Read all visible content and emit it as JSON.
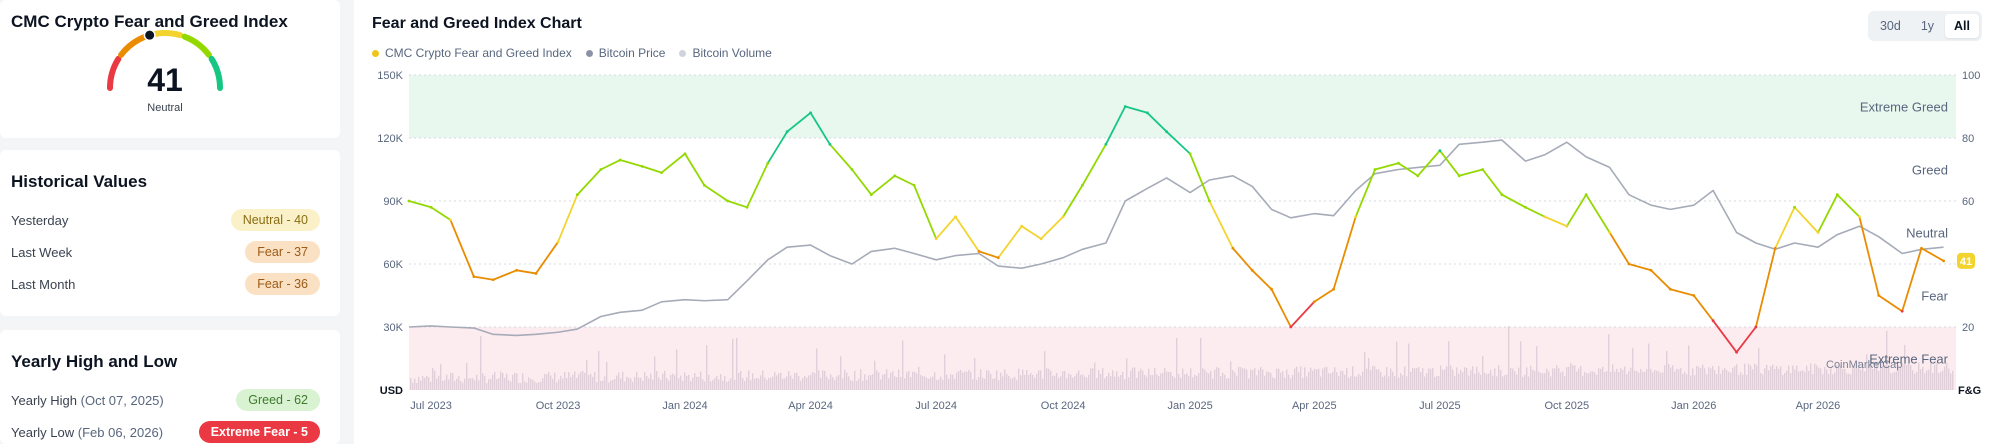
{
  "gauge": {
    "title": "CMC Crypto Fear and Greed Index",
    "value": "41",
    "classification": "Neutral"
  },
  "historical": {
    "title": "Historical Values",
    "rows": [
      {
        "label": "Yesterday",
        "value": "Neutral - 40",
        "level": "neutral"
      },
      {
        "label": "Last Week",
        "value": "Fear - 37",
        "level": "fear"
      },
      {
        "label": "Last Month",
        "value": "Fear - 36",
        "level": "fear"
      }
    ]
  },
  "yearly": {
    "title": "Yearly High and Low",
    "high_label": "Yearly High",
    "high_date": "(Oct 07, 2025)",
    "high_value": "Greed - 62",
    "low_label": "Yearly Low",
    "low_date": "(Feb 06, 2026)",
    "low_value": "Extreme Fear - 5"
  },
  "chart_header": {
    "title": "Fear and Greed Index Chart",
    "legend": [
      {
        "label": "CMC Crypto Fear and Greed Index",
        "color": "#f0c419"
      },
      {
        "label": "Bitcoin Price",
        "color": "#8d93a6"
      },
      {
        "label": "Bitcoin Volume",
        "color": "#cfd3dc"
      }
    ],
    "ranges": [
      "30d",
      "1y",
      "All"
    ],
    "active_range": "All"
  },
  "colors": {
    "extreme_fear": "#ea3943",
    "fear": "#ea8c00",
    "neutral": "#f3d42f",
    "greed": "#93d900",
    "extreme_greed": "#16c784",
    "btc": "#a6abb8",
    "volume": "#d6c6d0"
  },
  "chart_data": {
    "type": "line",
    "x_tick_labels": [
      "Jul 2023",
      "Oct 2023",
      "Jan 2024",
      "Apr 2024",
      "Jul 2024",
      "Oct 2024",
      "Jan 2025",
      "Apr 2025",
      "Jul 2025",
      "Oct 2025",
      "Jan 2026",
      "Apr 2026"
    ],
    "left_axis": {
      "label": "USD",
      "ticks": [
        "30K",
        "60K",
        "90K",
        "120K",
        "150K"
      ],
      "range": [
        0,
        150000
      ]
    },
    "right_axis": {
      "label": "F&G",
      "ticks": [
        "20",
        "40",
        "60",
        "80",
        "100"
      ],
      "range": [
        0,
        100
      ]
    },
    "zones": [
      "Extreme Greed",
      "Greed",
      "Neutral",
      "Fear",
      "Extreme Fear"
    ],
    "current_value": "41",
    "watermark": "CoinMarketCap",
    "series": [
      {
        "name": "CMC Crypto Fear and Greed Index",
        "x": [
          "2023-06-15",
          "2023-07-01",
          "2023-07-15",
          "2023-08-01",
          "2023-08-15",
          "2023-09-01",
          "2023-09-15",
          "2023-10-01",
          "2023-10-15",
          "2023-11-01",
          "2023-11-15",
          "2023-12-01",
          "2023-12-15",
          "2024-01-01",
          "2024-01-15",
          "2024-02-01",
          "2024-02-15",
          "2024-03-01",
          "2024-03-15",
          "2024-04-01",
          "2024-04-15",
          "2024-05-01",
          "2024-05-15",
          "2024-06-01",
          "2024-06-15",
          "2024-07-01",
          "2024-07-15",
          "2024-08-01",
          "2024-08-15",
          "2024-09-01",
          "2024-09-15",
          "2024-10-01",
          "2024-10-15",
          "2024-11-01",
          "2024-11-15",
          "2024-12-01",
          "2024-12-15",
          "2025-01-01",
          "2025-01-15",
          "2025-02-01",
          "2025-02-15",
          "2025-03-01",
          "2025-03-15",
          "2025-04-01",
          "2025-04-15",
          "2025-05-01",
          "2025-05-15",
          "2025-06-01",
          "2025-06-15",
          "2025-07-01",
          "2025-07-15",
          "2025-08-01",
          "2025-08-15",
          "2025-09-01",
          "2025-09-15",
          "2025-10-01",
          "2025-10-15",
          "2025-11-01",
          "2025-11-15",
          "2025-12-01",
          "2025-12-15",
          "2026-01-01",
          "2026-01-15",
          "2026-02-01",
          "2026-02-15",
          "2026-03-01",
          "2026-03-15",
          "2026-04-01",
          "2026-04-15",
          "2026-05-01",
          "2026-05-15",
          "2026-06-01",
          "2026-06-15",
          "2026-07-01"
        ],
        "values": [
          60,
          58,
          54,
          36,
          35,
          38,
          37,
          47,
          62,
          70,
          73,
          71,
          69,
          75,
          65,
          60,
          58,
          72,
          82,
          88,
          78,
          70,
          62,
          68,
          65,
          48,
          55,
          44,
          42,
          52,
          48,
          55,
          65,
          78,
          90,
          88,
          82,
          75,
          60,
          45,
          38,
          32,
          20,
          28,
          32,
          55,
          70,
          72,
          68,
          76,
          68,
          70,
          62,
          58,
          55,
          52,
          62,
          50,
          40,
          38,
          32,
          30,
          22,
          12,
          20,
          45,
          58,
          50,
          62,
          55,
          30,
          25,
          45,
          41
        ]
      },
      {
        "name": "Bitcoin Price",
        "x": [
          "2023-06-15",
          "2023-07-01",
          "2023-07-15",
          "2023-08-01",
          "2023-08-15",
          "2023-09-01",
          "2023-09-15",
          "2023-10-01",
          "2023-10-15",
          "2023-11-01",
          "2023-11-15",
          "2023-12-01",
          "2023-12-15",
          "2024-01-01",
          "2024-01-15",
          "2024-02-01",
          "2024-02-15",
          "2024-03-01",
          "2024-03-15",
          "2024-04-01",
          "2024-04-15",
          "2024-05-01",
          "2024-05-15",
          "2024-06-01",
          "2024-06-15",
          "2024-07-01",
          "2024-07-15",
          "2024-08-01",
          "2024-08-15",
          "2024-09-01",
          "2024-09-15",
          "2024-10-01",
          "2024-10-15",
          "2024-11-01",
          "2024-11-15",
          "2024-12-01",
          "2024-12-15",
          "2025-01-01",
          "2025-01-15",
          "2025-02-01",
          "2025-02-15",
          "2025-03-01",
          "2025-03-15",
          "2025-04-01",
          "2025-04-15",
          "2025-05-01",
          "2025-05-15",
          "2025-06-01",
          "2025-06-15",
          "2025-07-01",
          "2025-07-15",
          "2025-08-01",
          "2025-08-15",
          "2025-09-01",
          "2025-09-15",
          "2025-10-01",
          "2025-10-15",
          "2025-11-01",
          "2025-11-15",
          "2025-12-01",
          "2025-12-15",
          "2026-01-01",
          "2026-01-15",
          "2026-02-01",
          "2026-02-15",
          "2026-03-01",
          "2026-03-15",
          "2026-04-01",
          "2026-04-15",
          "2026-05-01",
          "2026-05-15",
          "2026-06-01",
          "2026-06-15",
          "2026-07-01"
        ],
        "values": [
          30000,
          30500,
          30000,
          29500,
          26500,
          26000,
          26500,
          27500,
          29000,
          35000,
          37000,
          38000,
          42000,
          43000,
          42500,
          43000,
          52000,
          62000,
          68000,
          69000,
          64000,
          60000,
          66000,
          67500,
          65000,
          62000,
          64000,
          65000,
          59000,
          58000,
          60000,
          63000,
          67000,
          70000,
          90000,
          96000,
          101000,
          94000,
          100000,
          102000,
          97000,
          86000,
          82000,
          84000,
          83000,
          95000,
          103000,
          105000,
          106000,
          107000,
          117000,
          118000,
          119000,
          109000,
          112000,
          118000,
          111000,
          106000,
          93000,
          88000,
          86000,
          88000,
          95000,
          75000,
          70000,
          67000,
          70000,
          68000,
          74000,
          78000,
          73000,
          65000,
          67000,
          68000
        ]
      }
    ]
  }
}
